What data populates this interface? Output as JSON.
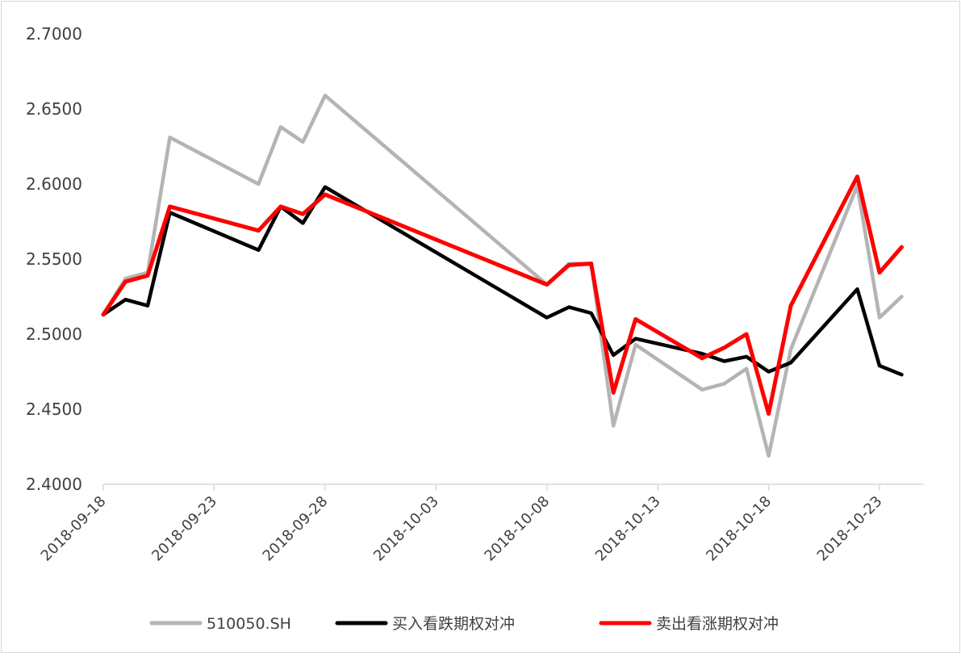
{
  "chart_data": {
    "type": "line",
    "title": "",
    "xlabel": "",
    "ylabel": "",
    "x_axis": {
      "type": "date",
      "min": "2018-09-18",
      "max": "2018-10-25",
      "ticks": [
        "2018-09-18",
        "2018-09-23",
        "2018-09-28",
        "2018-10-03",
        "2018-10-08",
        "2018-10-13",
        "2018-10-18",
        "2018-10-23"
      ]
    },
    "y_axis": {
      "min": 2.4,
      "max": 2.7,
      "ticks": [
        "2.4000",
        "2.4500",
        "2.5000",
        "2.5500",
        "2.6000",
        "2.6500",
        "2.7000"
      ]
    },
    "grid": false,
    "legend": "bottom",
    "series": [
      {
        "name": "510050.SH",
        "color": "#b4b4b4",
        "points": [
          [
            "2018-09-18",
            2.513
          ],
          [
            "2018-09-19",
            2.537
          ],
          [
            "2018-09-20",
            2.541
          ],
          [
            "2018-09-21",
            2.631
          ],
          [
            "2018-09-25",
            2.6
          ],
          [
            "2018-09-26",
            2.638
          ],
          [
            "2018-09-27",
            2.628
          ],
          [
            "2018-09-28",
            2.659
          ],
          [
            "2018-10-08",
            2.533
          ],
          [
            "2018-10-09",
            2.547
          ],
          [
            "2018-10-10",
            2.547
          ],
          [
            "2018-10-11",
            2.439
          ],
          [
            "2018-10-12",
            2.493
          ],
          [
            "2018-10-15",
            2.463
          ],
          [
            "2018-10-16",
            2.467
          ],
          [
            "2018-10-17",
            2.477
          ],
          [
            "2018-10-18",
            2.419
          ],
          [
            "2018-10-19",
            2.49
          ],
          [
            "2018-10-22",
            2.599
          ],
          [
            "2018-10-23",
            2.511
          ],
          [
            "2018-10-24",
            2.525
          ]
        ]
      },
      {
        "name": "买入看跌期权对冲",
        "color": "#000000",
        "points": [
          [
            "2018-09-18",
            2.513
          ],
          [
            "2018-09-19",
            2.523
          ],
          [
            "2018-09-20",
            2.519
          ],
          [
            "2018-09-21",
            2.581
          ],
          [
            "2018-09-25",
            2.556
          ],
          [
            "2018-09-26",
            2.585
          ],
          [
            "2018-09-27",
            2.574
          ],
          [
            "2018-09-28",
            2.598
          ],
          [
            "2018-10-08",
            2.511
          ],
          [
            "2018-10-09",
            2.518
          ],
          [
            "2018-10-10",
            2.514
          ],
          [
            "2018-10-11",
            2.486
          ],
          [
            "2018-10-12",
            2.497
          ],
          [
            "2018-10-15",
            2.487
          ],
          [
            "2018-10-16",
            2.482
          ],
          [
            "2018-10-17",
            2.485
          ],
          [
            "2018-10-18",
            2.475
          ],
          [
            "2018-10-19",
            2.481
          ],
          [
            "2018-10-22",
            2.53
          ],
          [
            "2018-10-23",
            2.479
          ],
          [
            "2018-10-24",
            2.473
          ]
        ]
      },
      {
        "name": "卖出看涨期权对冲",
        "color": "#ff0000",
        "points": [
          [
            "2018-09-18",
            2.513
          ],
          [
            "2018-09-19",
            2.535
          ],
          [
            "2018-09-20",
            2.539
          ],
          [
            "2018-09-21",
            2.585
          ],
          [
            "2018-09-25",
            2.569
          ],
          [
            "2018-09-26",
            2.585
          ],
          [
            "2018-09-27",
            2.58
          ],
          [
            "2018-09-28",
            2.593
          ],
          [
            "2018-10-08",
            2.533
          ],
          [
            "2018-10-09",
            2.546
          ],
          [
            "2018-10-10",
            2.547
          ],
          [
            "2018-10-11",
            2.461
          ],
          [
            "2018-10-12",
            2.51
          ],
          [
            "2018-10-15",
            2.484
          ],
          [
            "2018-10-16",
            2.491
          ],
          [
            "2018-10-17",
            2.5
          ],
          [
            "2018-10-18",
            2.447
          ],
          [
            "2018-10-19",
            2.519
          ],
          [
            "2018-10-22",
            2.605
          ],
          [
            "2018-10-23",
            2.541
          ],
          [
            "2018-10-24",
            2.558
          ]
        ]
      }
    ]
  }
}
